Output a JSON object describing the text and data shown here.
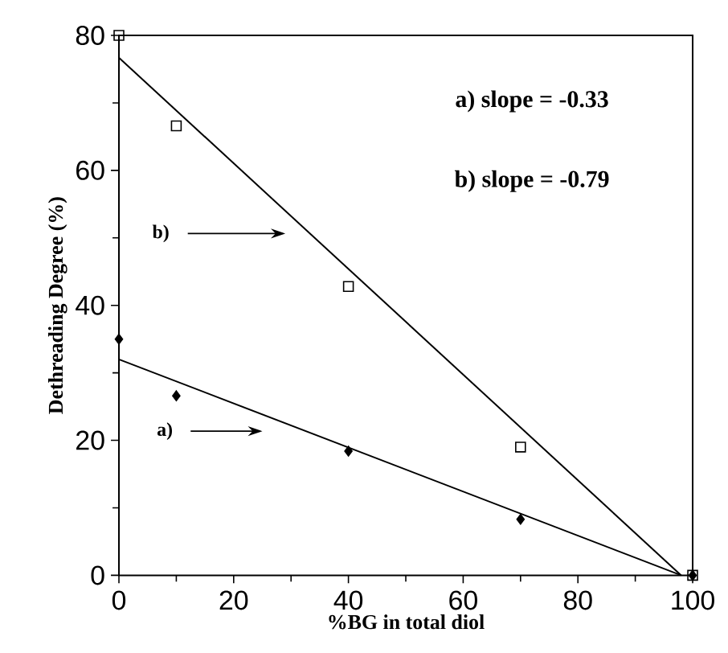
{
  "chart_data": {
    "type": "scatter",
    "xlabel": "%BG in total diol",
    "ylabel": "Dethreading Degree (%)",
    "xlim": [
      0,
      100
    ],
    "ylim": [
      0,
      80
    ],
    "xticks": [
      0,
      20,
      40,
      60,
      80,
      100
    ],
    "yticks": [
      0,
      20,
      40,
      60,
      80
    ],
    "series": [
      {
        "type": "scatter",
        "color": "#000000",
        "marker": "diamond",
        "x": [
          0,
          10,
          40,
          70,
          100
        ],
        "values": [
          35,
          26.6,
          18.4,
          8.3,
          0
        ]
      },
      {
        "type": "scatter",
        "color": "#000000",
        "marker": "square",
        "x": [
          0,
          10,
          40,
          70,
          100
        ],
        "values": [
          80,
          66.6,
          42.8,
          19,
          0
        ]
      },
      {
        "type": "line",
        "color": "#000000",
        "marker": "none",
        "line_style": "solid",
        "x": [
          0,
          98
        ],
        "values": [
          32,
          0
        ]
      },
      {
        "type": "line",
        "color": "#000000",
        "marker": "none",
        "line_style": "solid",
        "x": [
          0,
          98
        ],
        "values": [
          76.7,
          0
        ]
      }
    ],
    "annotations": [
      "a) slope = -0.33",
      "b) slope = -0.79",
      "a)",
      "b)"
    ]
  }
}
